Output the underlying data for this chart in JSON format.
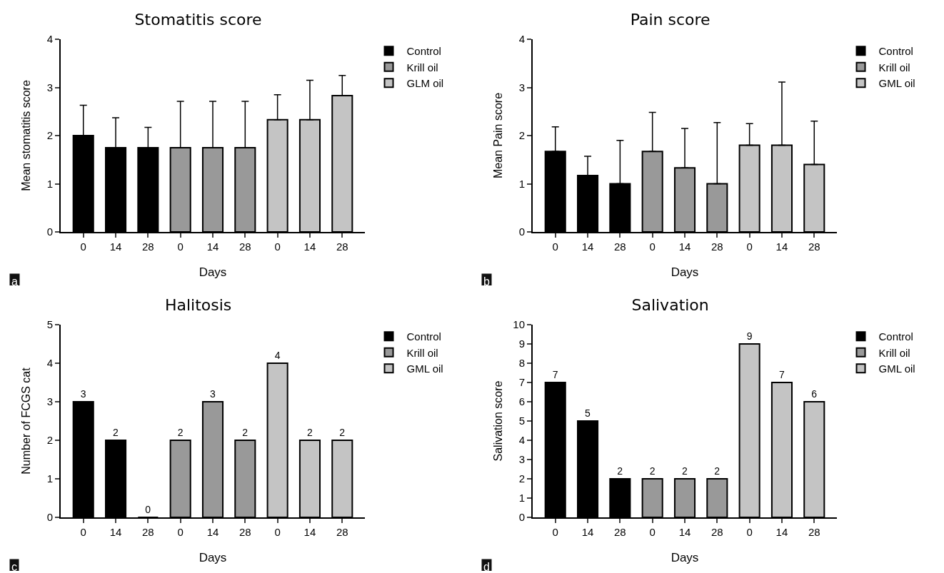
{
  "chart_data": [
    {
      "type": "bar",
      "title": "Stomatitis score",
      "xlabel": "Days",
      "ylabel": "Mean stomatitis score",
      "annotations": [
        "a"
      ],
      "categories": [
        "0",
        "14",
        "28",
        "0",
        "14",
        "28",
        "0",
        "14",
        "28"
      ],
      "series": [
        {
          "name": "Control",
          "color": "#000000",
          "values": [
            2,
            1.75,
            1.75,
            null,
            null,
            null,
            null,
            null,
            null
          ],
          "errors": [
            [
              2,
              2.63
            ],
            [
              1.75,
              2.37
            ],
            [
              1.75,
              2.17
            ],
            null,
            null,
            null,
            null,
            null,
            null
          ]
        },
        {
          "name": "Krill oil",
          "color": "#999999",
          "values": [
            null,
            null,
            null,
            1.75,
            1.75,
            1.75,
            null,
            null,
            null
          ],
          "errors": [
            null,
            null,
            null,
            [
              1.75,
              2.71
            ],
            [
              1.75,
              2.71
            ],
            [
              1.75,
              2.71
            ],
            null,
            null,
            null
          ]
        },
        {
          "name": "GLM oil",
          "color": "#c4c4c4",
          "values": [
            null,
            null,
            null,
            null,
            null,
            null,
            2.33,
            2.33,
            2.83
          ],
          "errors": [
            null,
            null,
            null,
            null,
            null,
            null,
            [
              2.33,
              2.85
            ],
            [
              2.33,
              3.15
            ],
            [
              2.83,
              3.25
            ]
          ]
        }
      ],
      "ylim": [
        0,
        4
      ],
      "yticks": [
        0,
        1,
        2,
        3,
        4
      ],
      "legend": "top right"
    },
    {
      "type": "bar",
      "title": "Pain score",
      "xlabel": "Days",
      "ylabel": "Mean Pain score",
      "annotations": [
        "b"
      ],
      "categories": [
        "0",
        "14",
        "28",
        "0",
        "14",
        "28",
        "0",
        "14",
        "28"
      ],
      "series": [
        {
          "name": "Control",
          "color": "#000000",
          "values": [
            1.67,
            1.17,
            1.0,
            null,
            null,
            null,
            null,
            null,
            null
          ],
          "errors": [
            [
              1.67,
              2.18
            ],
            [
              1.17,
              1.57
            ],
            [
              1.0,
              1.9
            ],
            null,
            null,
            null,
            null,
            null,
            null
          ]
        },
        {
          "name": "Krill oil",
          "color": "#999999",
          "values": [
            null,
            null,
            null,
            1.67,
            1.33,
            1.0,
            null,
            null,
            null
          ],
          "errors": [
            null,
            null,
            null,
            [
              1.67,
              2.48
            ],
            [
              1.33,
              2.15
            ],
            [
              1.0,
              2.27
            ],
            null,
            null,
            null
          ]
        },
        {
          "name": "GML oil",
          "color": "#c4c4c4",
          "values": [
            null,
            null,
            null,
            null,
            null,
            null,
            1.8,
            1.8,
            1.4
          ],
          "errors": [
            null,
            null,
            null,
            null,
            null,
            null,
            [
              1.8,
              2.25
            ],
            [
              1.8,
              3.11
            ],
            [
              1.4,
              2.3
            ]
          ]
        }
      ],
      "ylim": [
        0,
        4
      ],
      "yticks": [
        0,
        1,
        2,
        3,
        4
      ],
      "legend": "top right"
    },
    {
      "type": "bar",
      "title": "Halitosis",
      "xlabel": "Days",
      "ylabel": "Number of FCGS cat",
      "annotations": [
        "c"
      ],
      "categories": [
        "0",
        "14",
        "28",
        "0",
        "14",
        "28",
        "0",
        "14",
        "28"
      ],
      "series": [
        {
          "name": "Control",
          "color": "#000000",
          "values": [
            3,
            2,
            0,
            null,
            null,
            null,
            null,
            null,
            null
          ]
        },
        {
          "name": "Krill oil",
          "color": "#999999",
          "values": [
            null,
            null,
            null,
            2,
            3,
            2,
            null,
            null,
            null
          ]
        },
        {
          "name": "GML oil",
          "color": "#c4c4c4",
          "values": [
            null,
            null,
            null,
            null,
            null,
            null,
            4,
            2,
            2
          ]
        }
      ],
      "ylim": [
        0,
        5
      ],
      "yticks": [
        0,
        1,
        2,
        3,
        4,
        5
      ],
      "data_labels": true,
      "legend": "top right"
    },
    {
      "type": "bar",
      "title": "Salivation",
      "xlabel": "Days",
      "ylabel": "Salivation score",
      "annotations": [
        "d"
      ],
      "categories": [
        "0",
        "14",
        "28",
        "0",
        "14",
        "28",
        "0",
        "14",
        "28"
      ],
      "series": [
        {
          "name": "Control",
          "color": "#000000",
          "values": [
            7,
            5,
            2,
            null,
            null,
            null,
            null,
            null,
            null
          ]
        },
        {
          "name": "Krill oil",
          "color": "#999999",
          "values": [
            null,
            null,
            null,
            2,
            2,
            2,
            null,
            null,
            null
          ]
        },
        {
          "name": "GML oil",
          "color": "#c4c4c4",
          "values": [
            null,
            null,
            null,
            null,
            null,
            null,
            9,
            7,
            6
          ]
        }
      ],
      "ylim": [
        0,
        10
      ],
      "yticks": [
        0,
        1,
        2,
        3,
        4,
        5,
        6,
        7,
        8,
        9,
        10
      ],
      "data_labels": true,
      "legend": "top right"
    }
  ]
}
